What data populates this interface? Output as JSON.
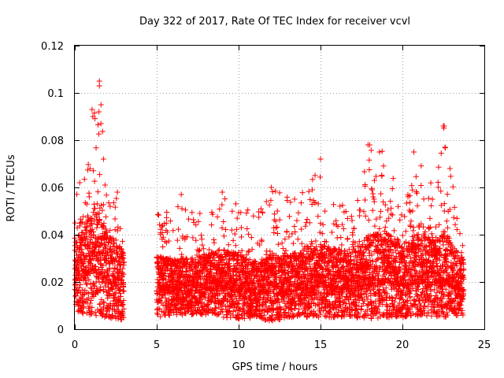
{
  "chart_data": {
    "type": "scatter",
    "title": "Day 322 of 2017, Rate Of TEC Index for receiver vcvl",
    "xlabel": "GPS time / hours",
    "ylabel": "ROTI / TECUs",
    "xlim": [
      0,
      25
    ],
    "ylim": [
      0,
      0.12
    ],
    "xticks": [
      0,
      5,
      10,
      15,
      20,
      25
    ],
    "xtick_labels": [
      "0",
      "5",
      "10",
      "15",
      "20",
      "25"
    ],
    "yticks": [
      0,
      0.02,
      0.04,
      0.06,
      0.08,
      0.1,
      0.12
    ],
    "ytick_labels": [
      "0",
      "0.02",
      "0.04",
      "0.06",
      "0.08",
      "0.1",
      "0.12"
    ],
    "grid": true,
    "marker": "plus",
    "marker_color": "#ff0000",
    "series": [
      {
        "name": "ROTI",
        "segments": [
          {
            "x_start": 0.0,
            "x_end": 3.0
          },
          {
            "x_start": 5.0,
            "x_end": 23.75
          }
        ],
        "approx_envelope": [
          {
            "x": 0.0,
            "low": 0.008,
            "median": 0.02,
            "high": 0.056
          },
          {
            "x": 0.5,
            "low": 0.006,
            "median": 0.022,
            "high": 0.062
          },
          {
            "x": 1.0,
            "low": 0.006,
            "median": 0.025,
            "high": 0.093
          },
          {
            "x": 1.5,
            "low": 0.005,
            "median": 0.024,
            "high": 0.105
          },
          {
            "x": 2.0,
            "low": 0.005,
            "median": 0.02,
            "high": 0.058
          },
          {
            "x": 2.5,
            "low": 0.004,
            "median": 0.018,
            "high": 0.058
          },
          {
            "x": 3.0,
            "low": 0.004,
            "median": 0.016,
            "high": 0.038
          },
          {
            "x": 5.0,
            "low": 0.005,
            "median": 0.016,
            "high": 0.05
          },
          {
            "x": 6.0,
            "low": 0.006,
            "median": 0.016,
            "high": 0.053
          },
          {
            "x": 7.0,
            "low": 0.006,
            "median": 0.016,
            "high": 0.05
          },
          {
            "x": 8.0,
            "low": 0.006,
            "median": 0.017,
            "high": 0.05
          },
          {
            "x": 9.0,
            "low": 0.005,
            "median": 0.017,
            "high": 0.058
          },
          {
            "x": 10.0,
            "low": 0.004,
            "median": 0.016,
            "high": 0.053
          },
          {
            "x": 11.0,
            "low": 0.005,
            "median": 0.015,
            "high": 0.05
          },
          {
            "x": 12.0,
            "low": 0.003,
            "median": 0.015,
            "high": 0.06
          },
          {
            "x": 13.0,
            "low": 0.005,
            "median": 0.016,
            "high": 0.056
          },
          {
            "x": 14.0,
            "low": 0.005,
            "median": 0.017,
            "high": 0.059
          },
          {
            "x": 15.0,
            "low": 0.005,
            "median": 0.018,
            "high": 0.072
          },
          {
            "x": 16.0,
            "low": 0.005,
            "median": 0.017,
            "high": 0.055
          },
          {
            "x": 17.0,
            "low": 0.005,
            "median": 0.017,
            "high": 0.05
          },
          {
            "x": 18.0,
            "low": 0.004,
            "median": 0.019,
            "high": 0.078
          },
          {
            "x": 19.0,
            "low": 0.005,
            "median": 0.02,
            "high": 0.075
          },
          {
            "x": 20.0,
            "low": 0.005,
            "median": 0.018,
            "high": 0.052
          },
          {
            "x": 21.0,
            "low": 0.005,
            "median": 0.02,
            "high": 0.075
          },
          {
            "x": 22.0,
            "low": 0.005,
            "median": 0.02,
            "high": 0.058
          },
          {
            "x": 22.5,
            "low": 0.005,
            "median": 0.02,
            "high": 0.086
          },
          {
            "x": 23.0,
            "low": 0.005,
            "median": 0.018,
            "high": 0.068
          },
          {
            "x": 23.75,
            "low": 0.006,
            "median": 0.016,
            "high": 0.035
          }
        ],
        "notable_peaks": [
          {
            "x": 1.5,
            "y": 0.105
          },
          {
            "x": 1.5,
            "y": 0.103
          },
          {
            "x": 1.6,
            "y": 0.095
          },
          {
            "x": 1.05,
            "y": 0.093
          },
          {
            "x": 1.1,
            "y": 0.09
          },
          {
            "x": 1.75,
            "y": 0.072
          },
          {
            "x": 0.3,
            "y": 0.062
          },
          {
            "x": 2.6,
            "y": 0.058
          },
          {
            "x": 6.5,
            "y": 0.057
          },
          {
            "x": 9.0,
            "y": 0.058
          },
          {
            "x": 12.0,
            "y": 0.06
          },
          {
            "x": 14.5,
            "y": 0.059
          },
          {
            "x": 15.0,
            "y": 0.072
          },
          {
            "x": 17.9,
            "y": 0.078
          },
          {
            "x": 18.0,
            "y": 0.078
          },
          {
            "x": 18.6,
            "y": 0.075
          },
          {
            "x": 20.7,
            "y": 0.075
          },
          {
            "x": 22.5,
            "y": 0.086
          },
          {
            "x": 22.55,
            "y": 0.086
          },
          {
            "x": 22.6,
            "y": 0.077
          },
          {
            "x": 22.9,
            "y": 0.068
          }
        ]
      }
    ]
  }
}
